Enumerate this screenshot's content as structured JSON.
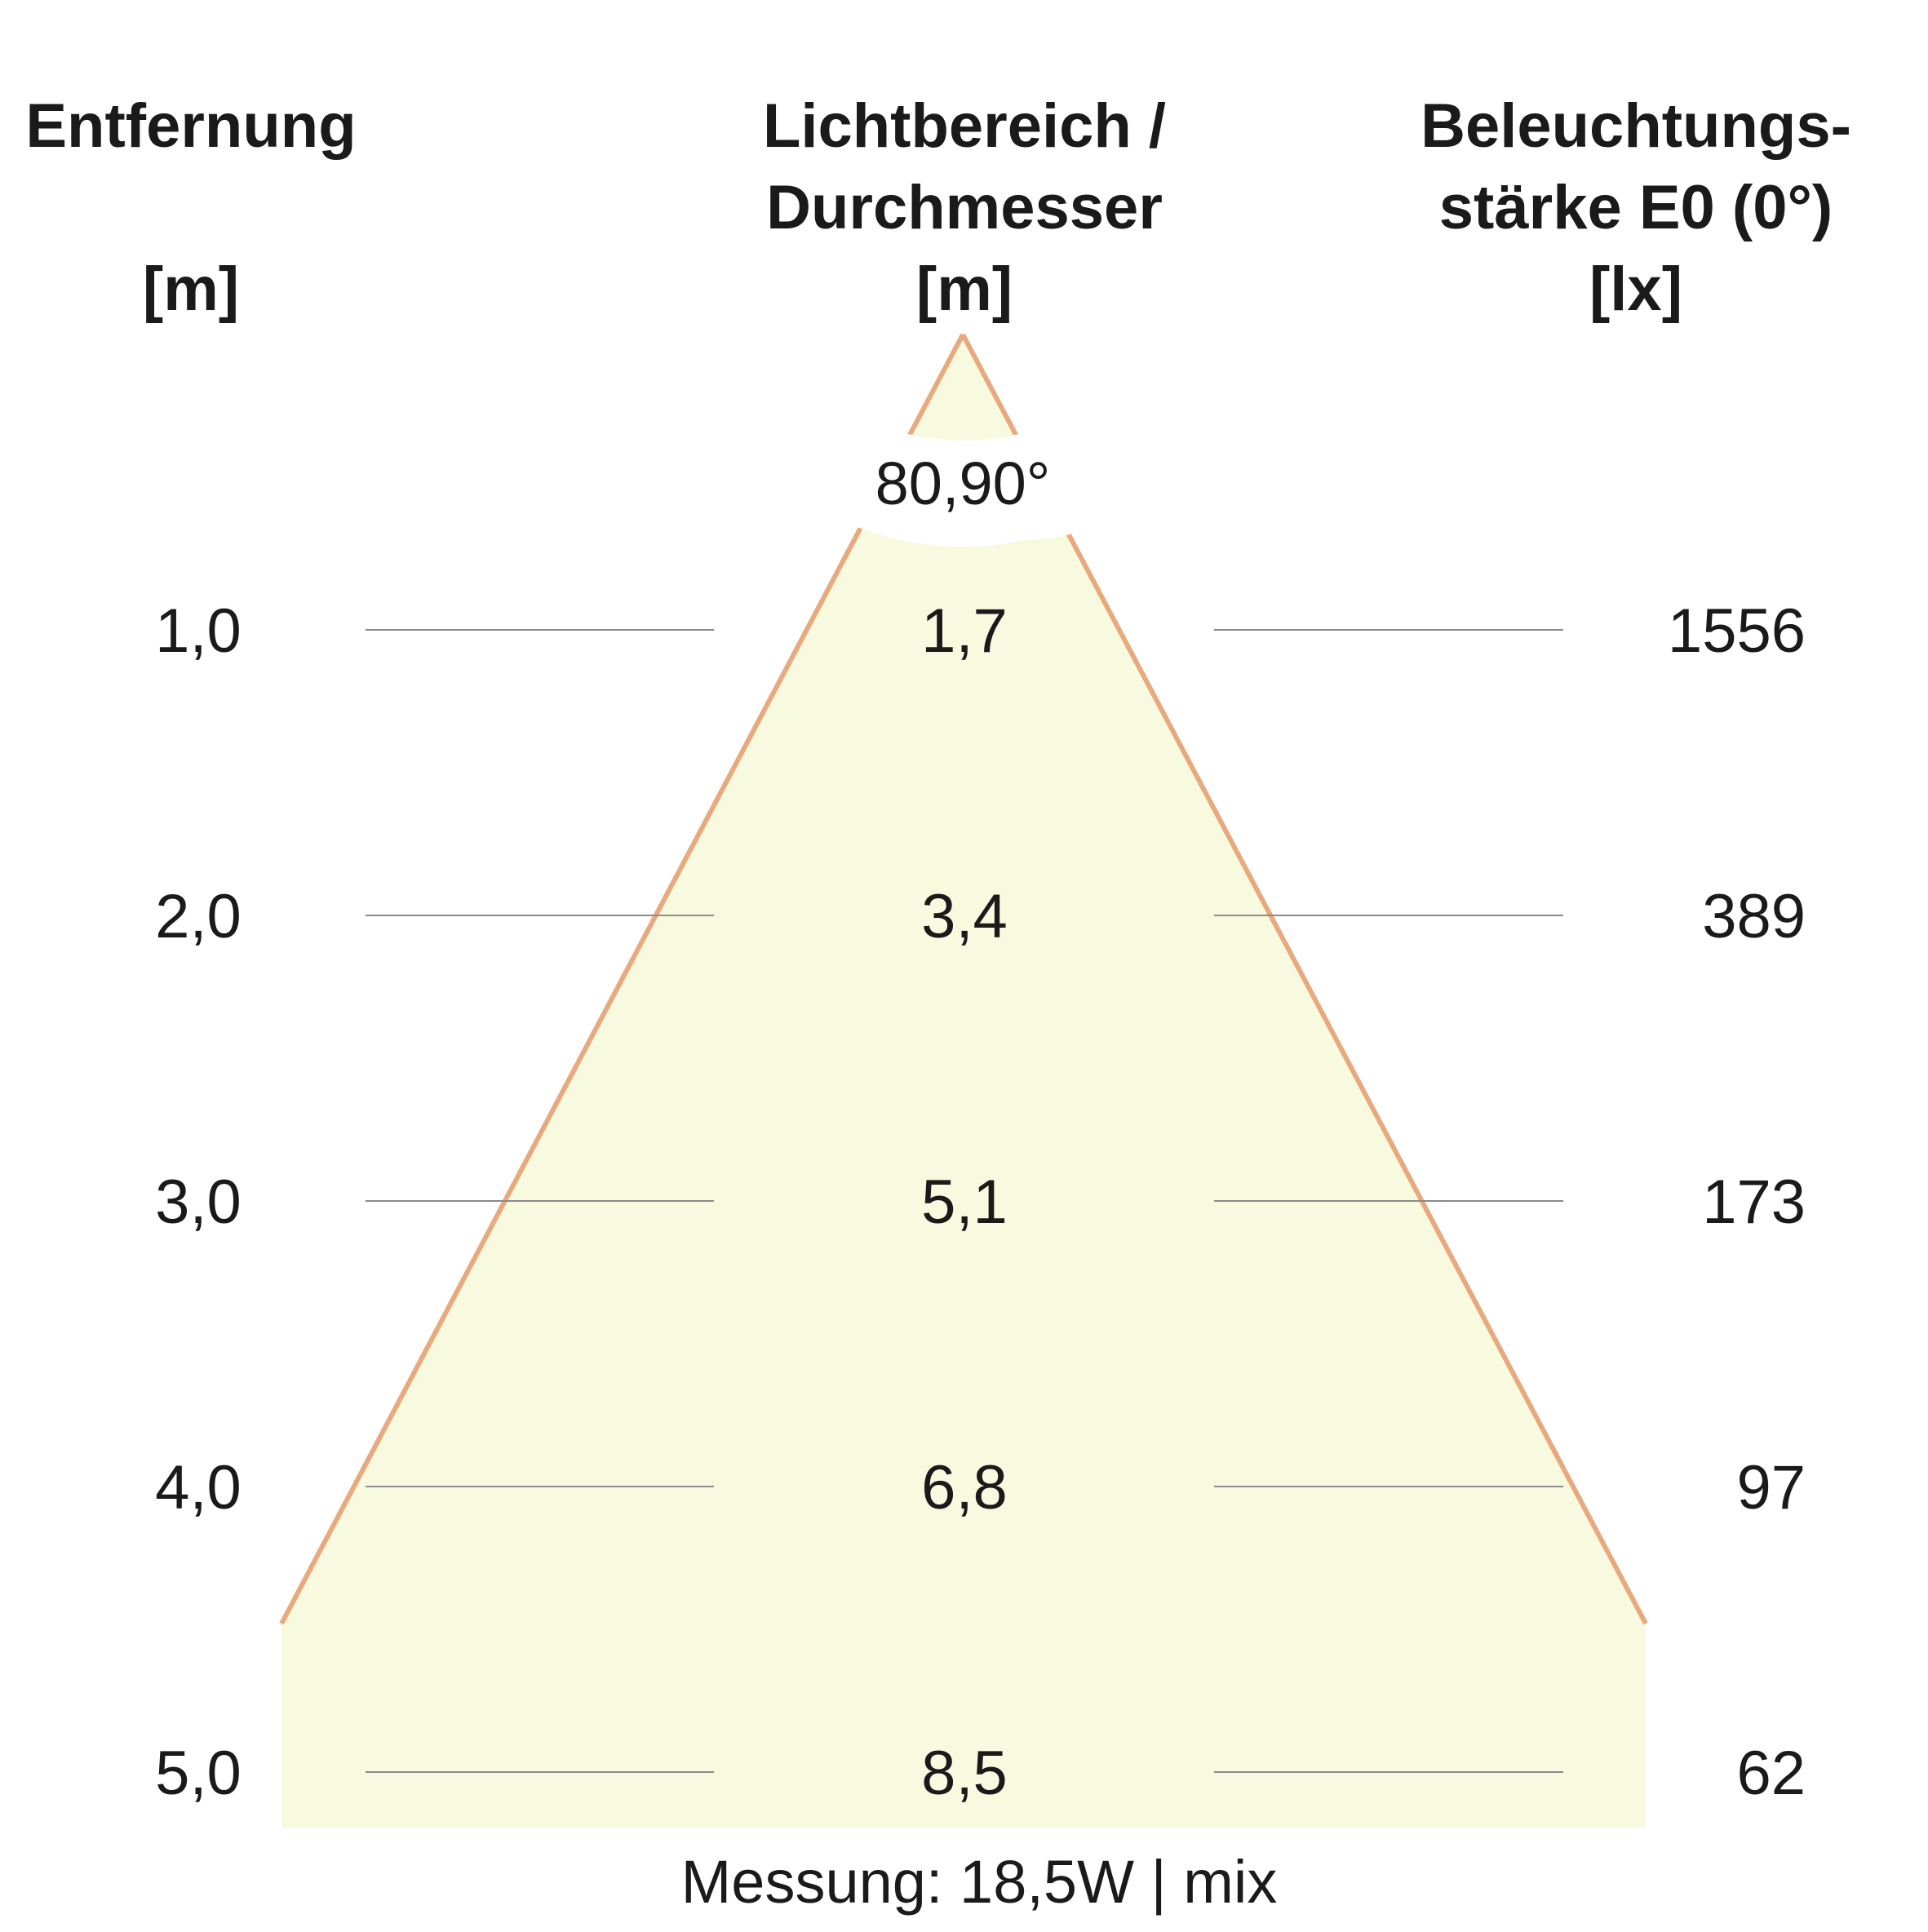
{
  "headers": {
    "distance": [
      "Entfernung",
      "[m]"
    ],
    "diameter": [
      "Lichtbereich /",
      "Durchmesser",
      "[m]"
    ],
    "illuminance": [
      "Beleuchtungs-",
      "stärke E0 (0°)",
      "[lx]"
    ]
  },
  "beam_angle": "80,90°",
  "rows": [
    {
      "distance": "1,0",
      "diameter": "1,7",
      "illuminance": "1556"
    },
    {
      "distance": "2,0",
      "diameter": "3,4",
      "illuminance": "389"
    },
    {
      "distance": "3,0",
      "diameter": "5,1",
      "illuminance": "173"
    },
    {
      "distance": "4,0",
      "diameter": "6,8",
      "illuminance": "97"
    },
    {
      "distance": "5,0",
      "diameter": "8,5",
      "illuminance": "62"
    }
  ],
  "footer": "Messung: 18,5W | mix",
  "colors": {
    "cone_fill": "#f8fae0",
    "cone_edge": "#e9a97e",
    "rule": "#8a8a8a",
    "text": "#1a1a1a"
  }
}
